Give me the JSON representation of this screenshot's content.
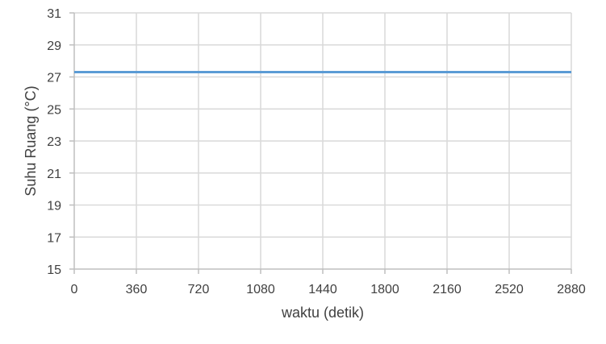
{
  "chart_data": {
    "type": "line",
    "title": "",
    "xlabel": "waktu (detik)",
    "ylabel": "Suhu Ruang (°C)",
    "xlim": [
      0,
      2880
    ],
    "ylim": [
      15,
      31
    ],
    "x_ticks": [
      0,
      360,
      720,
      1080,
      1440,
      1800,
      2160,
      2520,
      2880
    ],
    "y_ticks": [
      15,
      17,
      19,
      21,
      23,
      25,
      27,
      29,
      31
    ],
    "grid": true,
    "legend": "none",
    "series": [
      {
        "color": "#5b9bd5",
        "x": [
          0,
          360,
          720,
          1080,
          1440,
          1800,
          2160,
          2520,
          2880
        ],
        "y": [
          27.3,
          27.3,
          27.3,
          27.3,
          27.3,
          27.3,
          27.3,
          27.3,
          27.3
        ]
      }
    ]
  }
}
